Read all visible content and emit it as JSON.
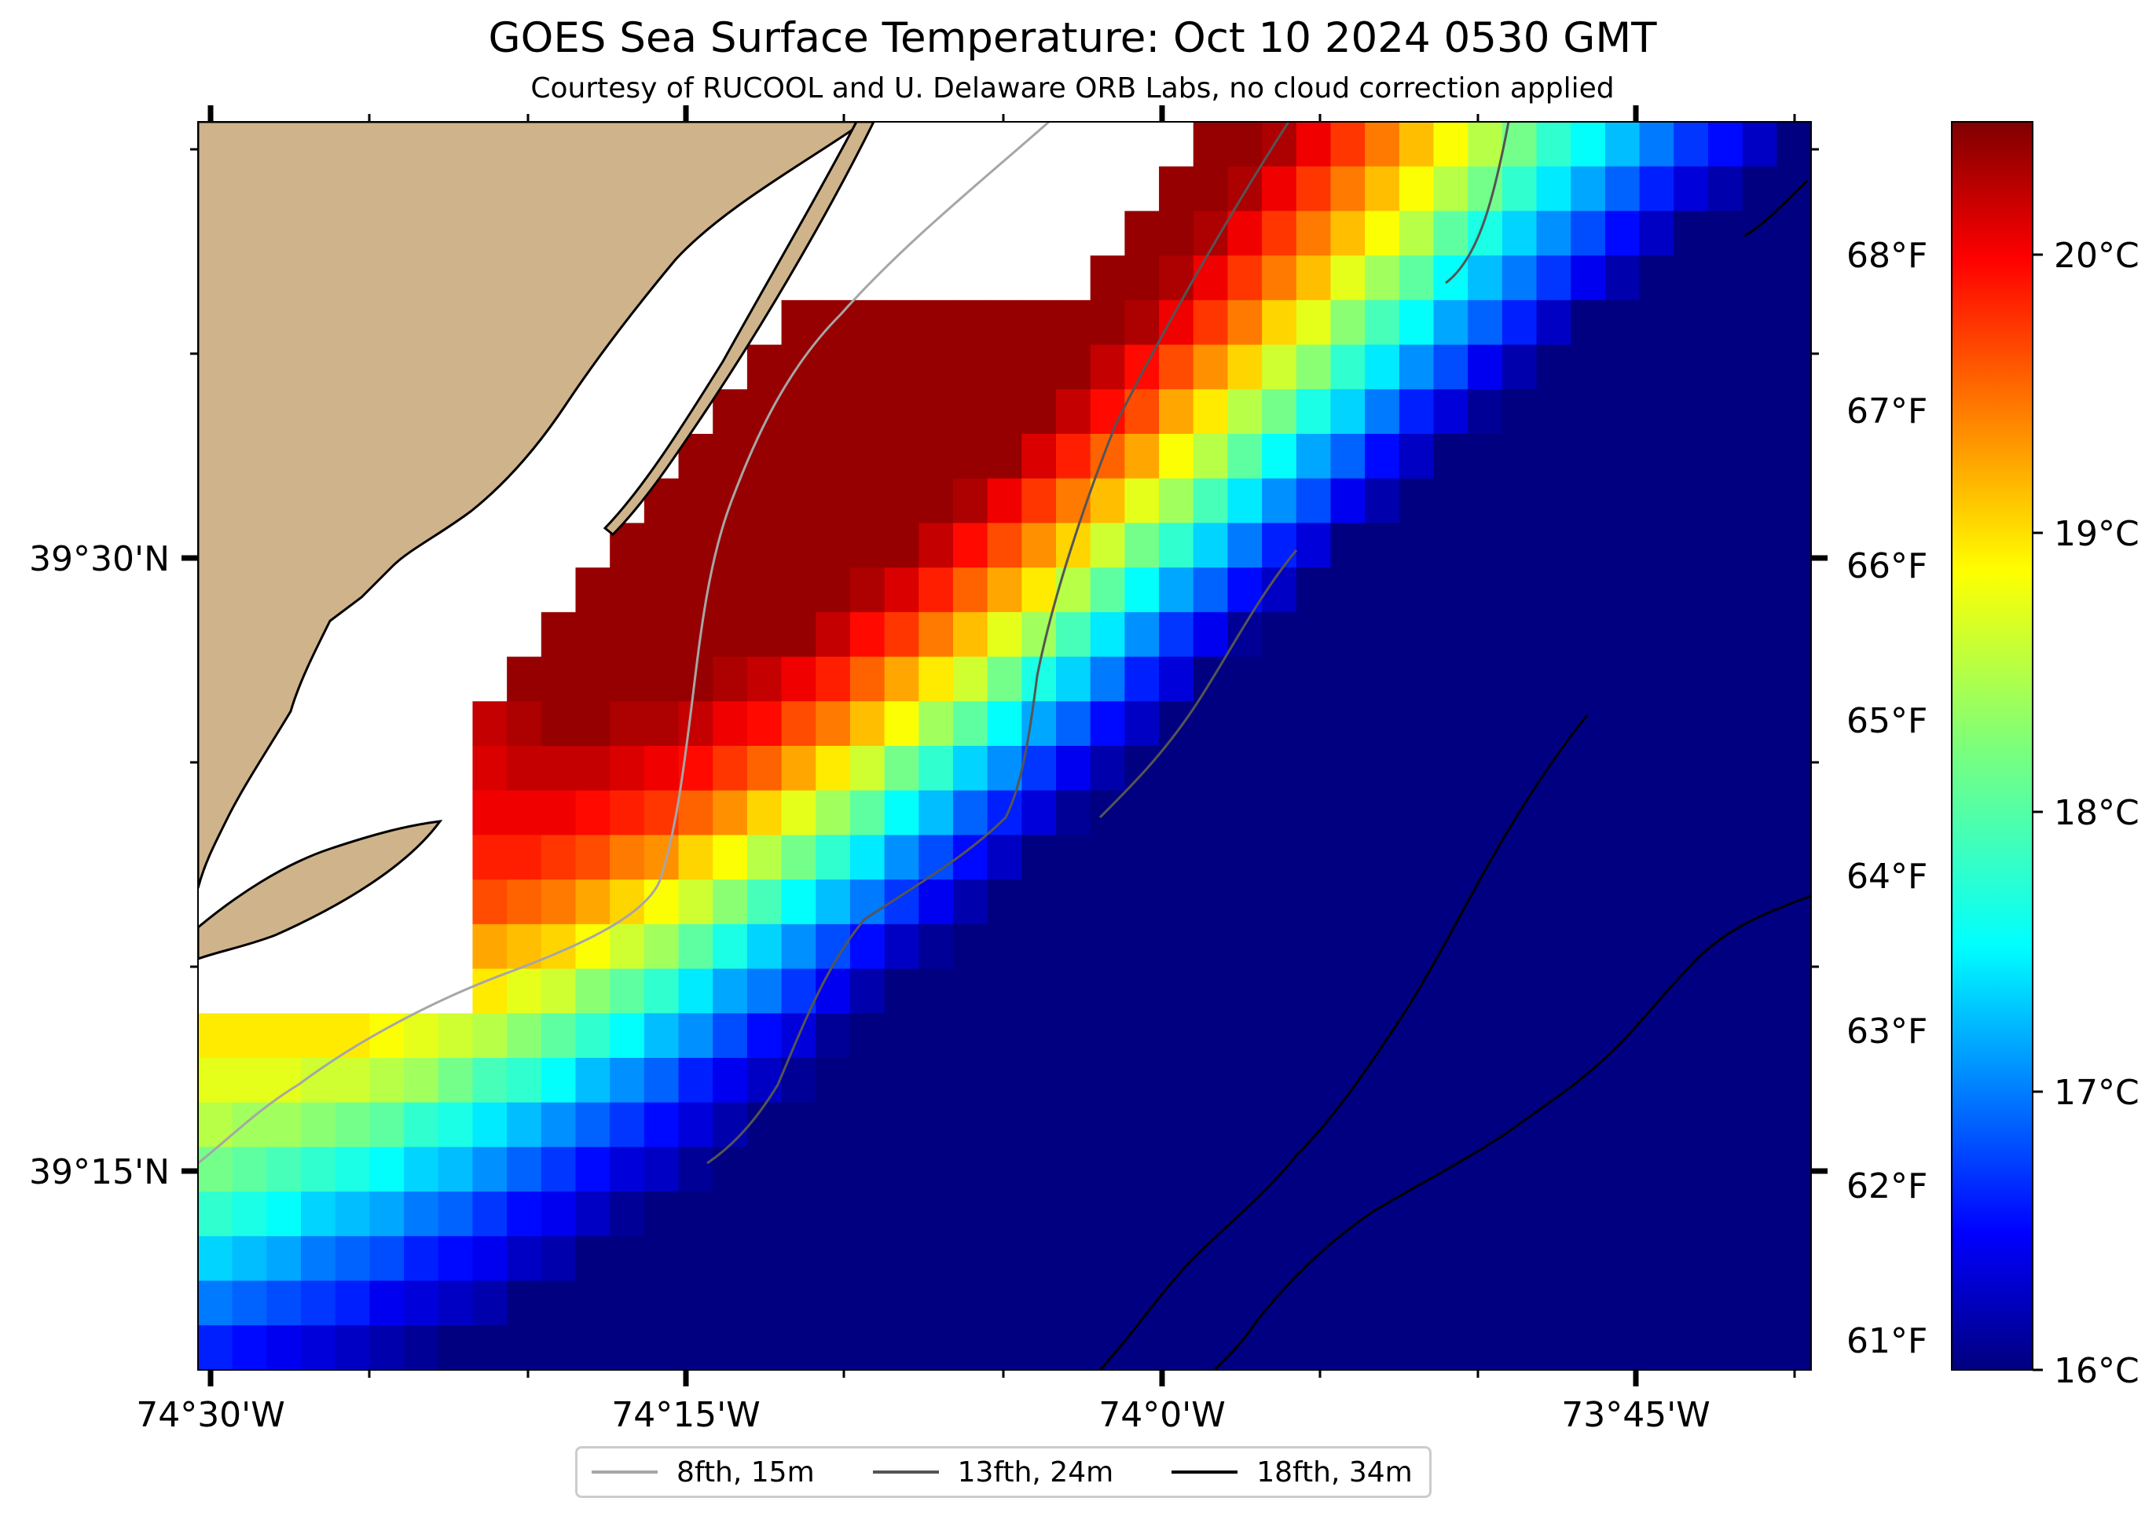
{
  "title": "GOES Sea Surface Temperature: Oct 10 2024 0530 GMT",
  "subtitle": "Courtesy of RUCOOL and U. Delaware ORB Labs, no cloud correction applied",
  "map": {
    "lon_labels": [
      "74°30'W",
      "74°15'W",
      "74°0'W",
      "73°45'W"
    ],
    "lat_labels": [
      "39°30'N",
      "39°15'N"
    ],
    "fahrenheit_labels": [
      "68°F",
      "67°F",
      "66°F",
      "65°F",
      "64°F",
      "63°F",
      "62°F",
      "61°F"
    ],
    "land_color": "#cfb38a",
    "nodata_color": "#ffffff"
  },
  "colorbar": {
    "labels": [
      "20°C",
      "19°C",
      "18°C",
      "17°C",
      "16°C"
    ],
    "range_c": [
      16,
      20.5
    ],
    "colormap": "jet"
  },
  "legend": {
    "items": [
      {
        "label": "8fth, 15m",
        "color": "#a6a6a6",
        "icon": "line-light-gray"
      },
      {
        "label": "13fth, 24m",
        "color": "#555555",
        "icon": "line-dark-gray"
      },
      {
        "label": "18fth, 34m",
        "color": "#000000",
        "icon": "line-black"
      }
    ]
  },
  "chart_data": {
    "type": "heatmap",
    "title": "GOES Sea Surface Temperature: Oct 10 2024 0530 GMT",
    "units": "°C",
    "colorbar_range": [
      16,
      20.5
    ],
    "lon_range": [
      "74°30'W",
      "73°40'W"
    ],
    "lat_range": [
      "39°08'N",
      "39°39'N"
    ],
    "rows": 28,
    "cols": 47,
    "value_note": "grid of approximate sea surface temperature cells (°C); land/no-data cells are null",
    "grid": []
  }
}
